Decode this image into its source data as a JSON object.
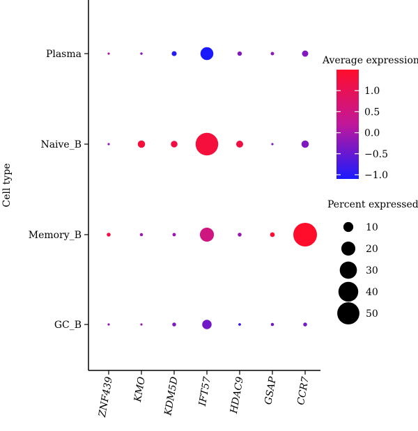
{
  "chart_data": {
    "type": "scatter",
    "subtype": "dot-plot",
    "title": "",
    "xlabel": "",
    "ylabel": "Cell type",
    "genes": [
      "ZNF439",
      "KMO",
      "KDM5D",
      "IFT57",
      "HDAC9",
      "GSAP",
      "CCR7"
    ],
    "cell_types": [
      "GC_B",
      "Memory_B",
      "Naive_B",
      "Plasma"
    ],
    "points": [
      {
        "cell": "Plasma",
        "gene": "ZNF439",
        "avg_exp": 0.1,
        "pct": 0.5
      },
      {
        "cell": "Plasma",
        "gene": "KMO",
        "avg_exp": -0.2,
        "pct": 0.6
      },
      {
        "cell": "Plasma",
        "gene": "KDM5D",
        "avg_exp": -1.0,
        "pct": 2.5
      },
      {
        "cell": "Plasma",
        "gene": "IFT57",
        "avg_exp": -1.1,
        "pct": 17
      },
      {
        "cell": "Plasma",
        "gene": "HDAC9",
        "avg_exp": -0.3,
        "pct": 2.0
      },
      {
        "cell": "Plasma",
        "gene": "GSAP",
        "avg_exp": -0.2,
        "pct": 1.2
      },
      {
        "cell": "Plasma",
        "gene": "CCR7",
        "avg_exp": -0.3,
        "pct": 4.0
      },
      {
        "cell": "Naive_B",
        "gene": "ZNF439",
        "avg_exp": -0.2,
        "pct": 0.5
      },
      {
        "cell": "Naive_B",
        "gene": "KMO",
        "avg_exp": 1.3,
        "pct": 5.5
      },
      {
        "cell": "Naive_B",
        "gene": "KDM5D",
        "avg_exp": 1.2,
        "pct": 4.5
      },
      {
        "cell": "Naive_B",
        "gene": "IFT57",
        "avg_exp": 1.3,
        "pct": 52
      },
      {
        "cell": "Naive_B",
        "gene": "HDAC9",
        "avg_exp": 1.2,
        "pct": 5.0
      },
      {
        "cell": "Naive_B",
        "gene": "GSAP",
        "avg_exp": -0.3,
        "pct": 0.5
      },
      {
        "cell": "Naive_B",
        "gene": "CCR7",
        "avg_exp": -0.3,
        "pct": 5.5
      },
      {
        "cell": "Memory_B",
        "gene": "ZNF439",
        "avg_exp": 1.2,
        "pct": 1.5
      },
      {
        "cell": "Memory_B",
        "gene": "KMO",
        "avg_exp": -0.1,
        "pct": 1.0
      },
      {
        "cell": "Memory_B",
        "gene": "KDM5D",
        "avg_exp": -0.1,
        "pct": 1.2
      },
      {
        "cell": "Memory_B",
        "gene": "IFT57",
        "avg_exp": 0.5,
        "pct": 20
      },
      {
        "cell": "Memory_B",
        "gene": "HDAC9",
        "avg_exp": -0.1,
        "pct": 1.5
      },
      {
        "cell": "Memory_B",
        "gene": "GSAP",
        "avg_exp": 1.4,
        "pct": 2.2
      },
      {
        "cell": "Memory_B",
        "gene": "CCR7",
        "avg_exp": 1.5,
        "pct": 57
      },
      {
        "cell": "GC_B",
        "gene": "ZNF439",
        "avg_exp": -0.2,
        "pct": 0.5
      },
      {
        "cell": "GC_B",
        "gene": "KMO",
        "avg_exp": -0.1,
        "pct": 0.5
      },
      {
        "cell": "GC_B",
        "gene": "KDM5D",
        "avg_exp": -0.3,
        "pct": 1.5
      },
      {
        "cell": "GC_B",
        "gene": "IFT57",
        "avg_exp": -0.4,
        "pct": 9.0
      },
      {
        "cell": "GC_B",
        "gene": "HDAC9",
        "avg_exp": -0.8,
        "pct": 0.7
      },
      {
        "cell": "GC_B",
        "gene": "GSAP",
        "avg_exp": -0.4,
        "pct": 1.0
      },
      {
        "cell": "GC_B",
        "gene": "CCR7",
        "avg_exp": -0.4,
        "pct": 1.5
      }
    ],
    "color_scale": {
      "title": "Average expression",
      "min": -1.1,
      "max": 1.5,
      "low_color": "#1a1aff",
      "mid_color": "#c0179a",
      "high_color": "#ff0d2b",
      "ticks": [
        {
          "value": 1.0,
          "label": "1.0"
        },
        {
          "value": 0.5,
          "label": "0.5"
        },
        {
          "value": 0.0,
          "label": "0.0"
        },
        {
          "value": -0.5,
          "label": "−0.5"
        },
        {
          "value": -1.0,
          "label": "−1.0"
        }
      ]
    },
    "size_scale": {
      "title": "Percent expressed",
      "max_value": 57,
      "entries": [
        {
          "value": 10,
          "label": "10"
        },
        {
          "value": 20,
          "label": "20"
        },
        {
          "value": 30,
          "label": "30"
        },
        {
          "value": 40,
          "label": "40"
        },
        {
          "value": 50,
          "label": "50"
        }
      ]
    },
    "grid": false,
    "legend_position": "right"
  }
}
